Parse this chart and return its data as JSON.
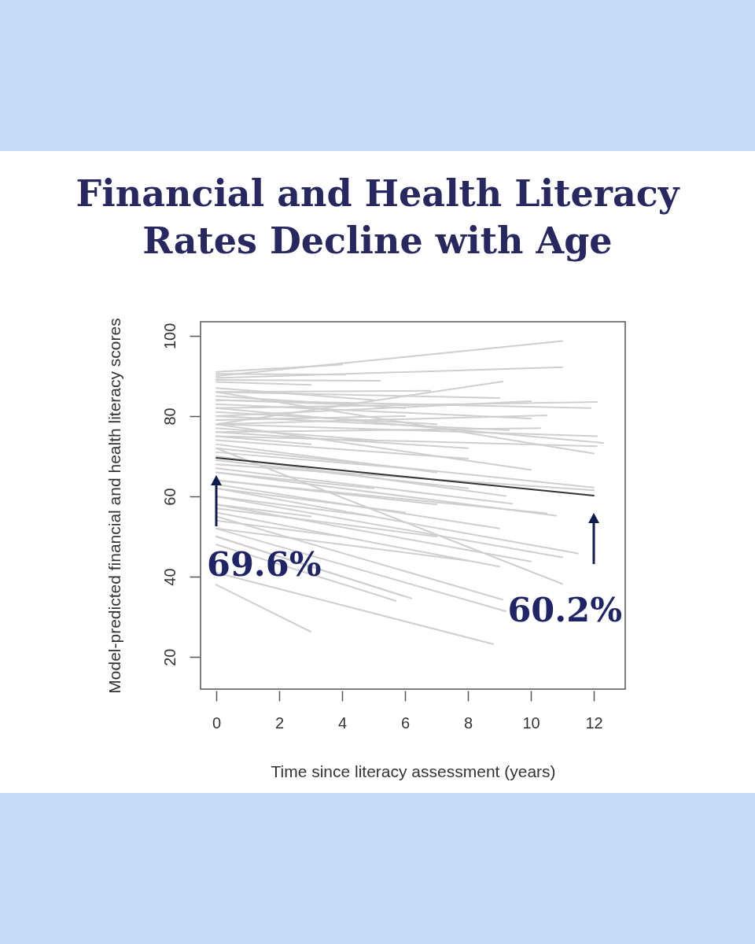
{
  "chart_data": {
    "type": "line",
    "title": "Financial and Health Literacy Rates Decline with Age",
    "xlabel": "Time since literacy assessment (years)",
    "ylabel": "Model-predicted financial and health literacy scores",
    "xlim": [
      -0.5,
      13
    ],
    "ylim": [
      12,
      103.5
    ],
    "xticks": [
      0,
      2,
      4,
      6,
      8,
      10,
      12
    ],
    "yticks": [
      20,
      40,
      60,
      80,
      100
    ],
    "series": [
      {
        "color": "#cfcfcf",
        "x": [
          0,
          11
        ],
        "values": [
          90,
          98.7
        ]
      },
      {
        "color": "#cfcfcf",
        "x": [
          0,
          4
        ],
        "values": [
          91,
          92.8
        ]
      },
      {
        "color": "#cfcfcf",
        "x": [
          0,
          4.1
        ],
        "values": [
          90.5,
          90.3
        ]
      },
      {
        "color": "#cfcfcf",
        "x": [
          0,
          11
        ],
        "values": [
          89.5,
          92.2
        ]
      },
      {
        "color": "#cfcfcf",
        "x": [
          0,
          5.2
        ],
        "values": [
          89,
          88.8
        ]
      },
      {
        "color": "#cfcfcf",
        "x": [
          0,
          3
        ],
        "values": [
          88.5,
          87.8
        ]
      },
      {
        "color": "#cfcfcf",
        "x": [
          0,
          9.1
        ],
        "values": [
          78,
          88.6
        ]
      },
      {
        "color": "#cfcfcf",
        "x": [
          0,
          6.8
        ],
        "values": [
          86,
          86.3
        ]
      },
      {
        "color": "#cfcfcf",
        "x": [
          0,
          12.1
        ],
        "values": [
          82,
          83.5
        ]
      },
      {
        "color": "#cfcfcf",
        "x": [
          0,
          11.9
        ],
        "values": [
          84,
          82
        ]
      },
      {
        "color": "#cfcfcf",
        "x": [
          0,
          10
        ],
        "values": [
          80,
          83.7
        ]
      },
      {
        "color": "#cfcfcf",
        "x": [
          0,
          9
        ],
        "values": [
          86,
          84.5
        ]
      },
      {
        "color": "#cfcfcf",
        "x": [
          0,
          10.5
        ],
        "values": [
          78,
          80.2
        ]
      },
      {
        "color": "#cfcfcf",
        "x": [
          0,
          10
        ],
        "values": [
          83,
          79.4
        ]
      },
      {
        "color": "#cfcfcf",
        "x": [
          0,
          10.3
        ],
        "values": [
          76,
          77
        ]
      },
      {
        "color": "#cfcfcf",
        "x": [
          0,
          9.3
        ],
        "values": [
          80,
          76.5
        ]
      },
      {
        "color": "#cfcfcf",
        "x": [
          0,
          12.1
        ],
        "values": [
          78,
          75
        ]
      },
      {
        "color": "#cfcfcf",
        "x": [
          0,
          12.3
        ],
        "values": [
          82,
          73.3
        ]
      },
      {
        "color": "#cfcfcf",
        "x": [
          0,
          12.1
        ],
        "values": [
          75,
          72.5
        ]
      },
      {
        "color": "#cfcfcf",
        "x": [
          0,
          12
        ],
        "values": [
          86,
          70.7
        ]
      },
      {
        "color": "#cfcfcf",
        "x": [
          0,
          10
        ],
        "values": [
          78,
          66.6
        ]
      },
      {
        "color": "#cfcfcf",
        "x": [
          0,
          8
        ],
        "values": [
          74,
          69.4
        ]
      },
      {
        "color": "#cfcfcf",
        "x": [
          0,
          12
        ],
        "values": [
          72,
          62.2
        ]
      },
      {
        "color": "#cfcfcf",
        "x": [
          0,
          12
        ],
        "values": [
          68,
          61.5
        ]
      },
      {
        "color": "#cfcfcf",
        "x": [
          0,
          10.8
        ],
        "values": [
          66,
          55.2
        ]
      },
      {
        "color": "#cfcfcf",
        "x": [
          0,
          10.5
        ],
        "values": [
          64,
          55.8
        ]
      },
      {
        "color": "#cfcfcf",
        "x": [
          0,
          9.2
        ],
        "values": [
          70,
          60.1
        ]
      },
      {
        "color": "#cfcfcf",
        "x": [
          0,
          9.4
        ],
        "values": [
          67,
          58.2
        ]
      },
      {
        "color": "#cfcfcf",
        "x": [
          0,
          11.5
        ],
        "values": [
          62,
          45.8
        ]
      },
      {
        "color": "#cfcfcf",
        "x": [
          0,
          11
        ],
        "values": [
          60,
          44.8
        ]
      },
      {
        "color": "#cfcfcf",
        "x": [
          0,
          10
        ],
        "values": [
          58,
          43.8
        ]
      },
      {
        "color": "#cfcfcf",
        "x": [
          0,
          9
        ],
        "values": [
          56,
          42.5
        ]
      },
      {
        "color": "#cfcfcf",
        "x": [
          0,
          11
        ],
        "values": [
          72,
          38.2
        ]
      },
      {
        "color": "#cfcfcf",
        "x": [
          0,
          9.1
        ],
        "values": [
          55,
          34.3
        ]
      },
      {
        "color": "#cfcfcf",
        "x": [
          0,
          9.2
        ],
        "values": [
          52,
          31.4
        ]
      },
      {
        "color": "#cfcfcf",
        "x": [
          0,
          8.8
        ],
        "values": [
          41,
          23.2
        ]
      },
      {
        "color": "#cfcfcf",
        "x": [
          0,
          6.2
        ],
        "values": [
          50,
          34.6
        ]
      },
      {
        "color": "#cfcfcf",
        "x": [
          0,
          3
        ],
        "values": [
          38,
          26.3
        ]
      },
      {
        "color": "#cfcfcf",
        "x": [
          0,
          5.7
        ],
        "values": [
          48,
          34
        ]
      },
      {
        "color": "#cfcfcf",
        "x": [
          0,
          5.9
        ],
        "values": [
          50,
          35.3
        ]
      },
      {
        "color": "#cfcfcf",
        "x": [
          0,
          5
        ],
        "values": [
          87,
          84
        ]
      },
      {
        "color": "#cfcfcf",
        "x": [
          0,
          6
        ],
        "values": [
          85,
          82
        ]
      },
      {
        "color": "#cfcfcf",
        "x": [
          0,
          4
        ],
        "values": [
          84,
          83
        ]
      },
      {
        "color": "#cfcfcf",
        "x": [
          0,
          7
        ],
        "values": [
          81,
          78
        ]
      },
      {
        "color": "#cfcfcf",
        "x": [
          0,
          6
        ],
        "values": [
          79,
          80
        ]
      },
      {
        "color": "#cfcfcf",
        "x": [
          0,
          5
        ],
        "values": [
          77,
          74
        ]
      },
      {
        "color": "#cfcfcf",
        "x": [
          0,
          8
        ],
        "values": [
          76,
          72
        ]
      },
      {
        "color": "#cfcfcf",
        "x": [
          0,
          7
        ],
        "values": [
          73,
          66
        ]
      },
      {
        "color": "#cfcfcf",
        "x": [
          0,
          6
        ],
        "values": [
          71,
          67
        ]
      },
      {
        "color": "#cfcfcf",
        "x": [
          0,
          5
        ],
        "values": [
          66,
          62
        ]
      },
      {
        "color": "#cfcfcf",
        "x": [
          0,
          7
        ],
        "values": [
          64,
          58
        ]
      },
      {
        "color": "#cfcfcf",
        "x": [
          0,
          6
        ],
        "values": [
          62,
          56
        ]
      },
      {
        "color": "#cfcfcf",
        "x": [
          0,
          5
        ],
        "values": [
          60,
          55
        ]
      },
      {
        "color": "#cfcfcf",
        "x": [
          0,
          7
        ],
        "values": [
          57,
          50
        ]
      },
      {
        "color": "#cfcfcf",
        "x": [
          0,
          4
        ],
        "values": [
          54,
          50
        ]
      },
      {
        "color": "#cfcfcf",
        "x": [
          0,
          8
        ],
        "values": [
          52,
          44
        ]
      },
      {
        "color": "#cfcfcf",
        "x": [
          0,
          3
        ],
        "values": [
          58,
          55
        ]
      },
      {
        "color": "#cfcfcf",
        "x": [
          0,
          9
        ],
        "values": [
          63,
          52
        ]
      },
      {
        "color": "#cfcfcf",
        "x": [
          0,
          8
        ],
        "values": [
          69,
          62
        ]
      },
      {
        "color": "#cfcfcf",
        "x": [
          0,
          3
        ],
        "values": [
          75,
          73
        ]
      },
      {
        "color": "#333333",
        "x": [
          0,
          12
        ],
        "values": [
          69.6,
          60.2
        ]
      }
    ],
    "annotations": [
      {
        "text": "69.6%",
        "x": 0,
        "y": 69.6
      },
      {
        "text": "60.2%",
        "x": 12,
        "y": 60.2
      }
    ]
  }
}
